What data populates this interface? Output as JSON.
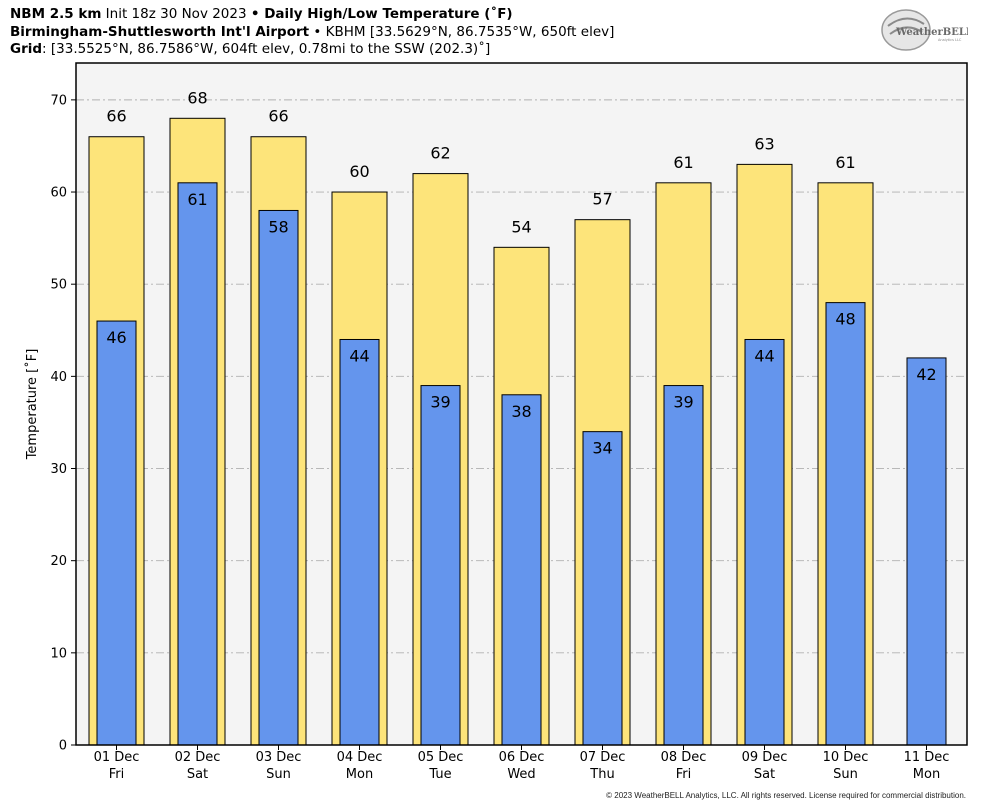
{
  "header": {
    "line1_bold1": "NBM 2.5 km",
    "line1_init": " Init 18z 30 Nov 2023 ",
    "line1_sep": "•",
    "line1_bold2": " Daily High/Low Temperature (˚F)",
    "line2_bold": "Birmingham-Shuttlesworth Int'l Airport",
    "line2_sep": " • ",
    "line2_rest": "KBHM [33.5629°N, 86.7535°W, 650ft elev]",
    "line3_bold": "Grid",
    "line3_rest": ": [33.5525°N, 86.7586°W, 604ft elev, 0.78mi to the SSW (202.3)˚]"
  },
  "logo": {
    "text": "WeatherBELL",
    "subtext": "Analytics LLC"
  },
  "copyright": "© 2023 WeatherBELL Analytics, LLC. All rights reserved. License required for commercial distribution.",
  "colors": {
    "high": "#fde47a",
    "low": "#6495ed",
    "plot_bg": "#f4f4f4",
    "grid": "#b0b0b0"
  },
  "chart_data": {
    "type": "bar",
    "title": "Daily High/Low Temperature (˚F)",
    "ylabel": "Temperature [˚F]",
    "ylim": [
      0,
      74
    ],
    "yticks": [
      0,
      10,
      20,
      30,
      40,
      50,
      60,
      70
    ],
    "grid": true,
    "categories": [
      [
        "01 Dec",
        "Fri"
      ],
      [
        "02 Dec",
        "Sat"
      ],
      [
        "03 Dec",
        "Sun"
      ],
      [
        "04 Dec",
        "Mon"
      ],
      [
        "05 Dec",
        "Tue"
      ],
      [
        "06 Dec",
        "Wed"
      ],
      [
        "07 Dec",
        "Thu"
      ],
      [
        "08 Dec",
        "Fri"
      ],
      [
        "09 Dec",
        "Sat"
      ],
      [
        "10 Dec",
        "Sun"
      ],
      [
        "11 Dec",
        "Mon"
      ]
    ],
    "series": [
      {
        "values": [
          66,
          68,
          66,
          60,
          62,
          54,
          57,
          61,
          63,
          61,
          null
        ]
      },
      {
        "values": [
          46,
          61,
          58,
          44,
          39,
          38,
          34,
          39,
          44,
          48,
          42
        ]
      }
    ]
  }
}
